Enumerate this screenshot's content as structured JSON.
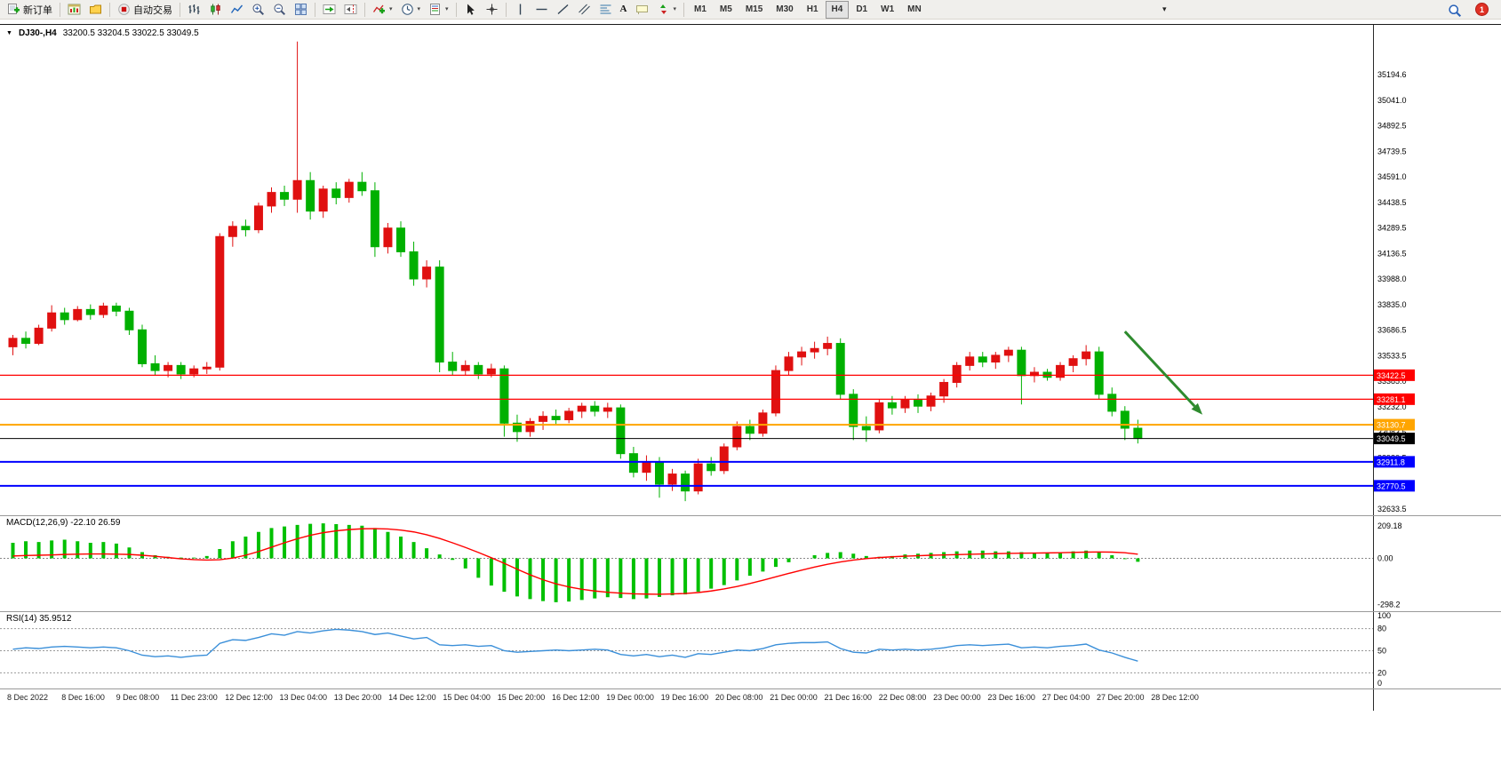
{
  "toolbar": {
    "new_order_label": "新订单",
    "auto_trading_label": "自动交易",
    "timeframes": [
      "M1",
      "M5",
      "M15",
      "M30",
      "H1",
      "H4",
      "D1",
      "W1",
      "MN"
    ],
    "active_timeframe": "H4",
    "notification_count": "1"
  },
  "icons": {
    "collapse_triangle": "▼",
    "caret": "▾",
    "text_tool": "A"
  },
  "colors": {
    "up_candle": "#E01010",
    "down_candle": "#00B000",
    "macd_histogram": "#00C000",
    "macd_signal": "#FF0000",
    "rsi_line": "#3A8FD9",
    "arrow_annotation": "#2E8B2E"
  },
  "chart_data": {
    "type": "candlestick",
    "symbol": "DJ30-,H4",
    "ohlc_display": "33200.5 33204.5 33022.5 33049.5",
    "price_range": {
      "axis_top": 35194.6,
      "axis_bottom": 32633.5
    },
    "price_axis_labels": [
      "35194.6",
      "35041.0",
      "34892.5",
      "34739.5",
      "34591.0",
      "34438.5",
      "34289.5",
      "34136.5",
      "33988.0",
      "33835.0",
      "33686.5",
      "33533.5",
      "33385.0",
      "33232.0",
      "33083.5",
      "32930.5",
      "32777.5",
      "32633.5"
    ],
    "time_axis_labels": [
      "8 Dec 2022",
      "8 Dec 16:00",
      "9 Dec 08:00",
      "11 Dec 23:00",
      "12 Dec 12:00",
      "13 Dec 04:00",
      "13 Dec 20:00",
      "14 Dec 12:00",
      "15 Dec 04:00",
      "15 Dec 20:00",
      "16 Dec 12:00",
      "19 Dec 00:00",
      "19 Dec 16:00",
      "20 Dec 08:00",
      "21 Dec 00:00",
      "21 Dec 16:00",
      "22 Dec 08:00",
      "23 Dec 00:00",
      "23 Dec 16:00",
      "27 Dec 04:00",
      "27 Dec 20:00",
      "28 Dec 12:00"
    ],
    "price_lines": [
      {
        "price": 33422.5,
        "label": "33422.5",
        "color": "#FF0000",
        "width": 1.2
      },
      {
        "price": 33281.1,
        "label": "33281.1",
        "color": "#FF0000",
        "width": 1.2
      },
      {
        "price": 33130.7,
        "label": "33130.7",
        "color": "#FFA500",
        "width": 2
      },
      {
        "price": 33049.5,
        "label": "33049.5",
        "color": "#000000",
        "width": 1
      },
      {
        "price": 32911.8,
        "label": "32911.8",
        "color": "#0000FF",
        "width": 2
      },
      {
        "price": 32770.5,
        "label": "32770.5",
        "color": "#0000FF",
        "width": 2
      }
    ],
    "arrow": {
      "from": {
        "bar": 86,
        "price": 33680
      },
      "to": {
        "bar": 92,
        "price": 33190
      }
    },
    "candles": [
      [
        33590,
        33660,
        33540,
        33640
      ],
      [
        33640,
        33680,
        33580,
        33610
      ],
      [
        33610,
        33720,
        33600,
        33700
      ],
      [
        33700,
        33835,
        33680,
        33790
      ],
      [
        33790,
        33820,
        33720,
        33750
      ],
      [
        33750,
        33830,
        33740,
        33810
      ],
      [
        33810,
        33840,
        33750,
        33780
      ],
      [
        33780,
        33850,
        33760,
        33830
      ],
      [
        33830,
        33850,
        33770,
        33800
      ],
      [
        33800,
        33820,
        33660,
        33690
      ],
      [
        33690,
        33720,
        33470,
        33490
      ],
      [
        33490,
        33540,
        33420,
        33450
      ],
      [
        33450,
        33500,
        33410,
        33480
      ],
      [
        33480,
        33500,
        33400,
        33430
      ],
      [
        33430,
        33480,
        33410,
        33460
      ],
      [
        33460,
        33500,
        33430,
        33470
      ],
      [
        33470,
        34260,
        33450,
        34240
      ],
      [
        34240,
        34330,
        34180,
        34300
      ],
      [
        34300,
        34340,
        34240,
        34280
      ],
      [
        34280,
        34440,
        34260,
        34420
      ],
      [
        34420,
        34530,
        34380,
        34500
      ],
      [
        34500,
        34540,
        34420,
        34460
      ],
      [
        34460,
        35390,
        34380,
        34570
      ],
      [
        34570,
        34620,
        34340,
        34390
      ],
      [
        34390,
        34540,
        34350,
        34520
      ],
      [
        34520,
        34560,
        34430,
        34470
      ],
      [
        34470,
        34580,
        34440,
        34560
      ],
      [
        34560,
        34620,
        34480,
        34510
      ],
      [
        34510,
        34560,
        34120,
        34180
      ],
      [
        34180,
        34320,
        34140,
        34290
      ],
      [
        34290,
        34330,
        34120,
        34150
      ],
      [
        34150,
        34210,
        33950,
        33990
      ],
      [
        33990,
        34100,
        33940,
        34060
      ],
      [
        34060,
        34100,
        33440,
        33500
      ],
      [
        33500,
        33560,
        33420,
        33450
      ],
      [
        33450,
        33510,
        33420,
        33480
      ],
      [
        33480,
        33500,
        33400,
        33430
      ],
      [
        33430,
        33490,
        33410,
        33460
      ],
      [
        33460,
        33480,
        33060,
        33140
      ],
      [
        33140,
        33190,
        33030,
        33090
      ],
      [
        33090,
        33170,
        33060,
        33150
      ],
      [
        33150,
        33210,
        33100,
        33180
      ],
      [
        33180,
        33220,
        33130,
        33160
      ],
      [
        33160,
        33230,
        33140,
        33210
      ],
      [
        33210,
        33260,
        33170,
        33240
      ],
      [
        33240,
        33270,
        33180,
        33210
      ],
      [
        33210,
        33260,
        33170,
        33230
      ],
      [
        33230,
        33250,
        32930,
        32960
      ],
      [
        32960,
        33000,
        32820,
        32850
      ],
      [
        32850,
        32950,
        32800,
        32910
      ],
      [
        32910,
        32940,
        32700,
        32780
      ],
      [
        32780,
        32870,
        32740,
        32840
      ],
      [
        32840,
        32860,
        32680,
        32740
      ],
      [
        32740,
        32930,
        32720,
        32900
      ],
      [
        32900,
        32940,
        32830,
        32860
      ],
      [
        32860,
        33020,
        32840,
        33000
      ],
      [
        33000,
        33150,
        32980,
        33120
      ],
      [
        33120,
        33160,
        33040,
        33080
      ],
      [
        33080,
        33220,
        33060,
        33200
      ],
      [
        33200,
        33480,
        33180,
        33450
      ],
      [
        33450,
        33560,
        33420,
        33530
      ],
      [
        33530,
        33590,
        33480,
        33560
      ],
      [
        33560,
        33620,
        33520,
        33580
      ],
      [
        33580,
        33650,
        33540,
        33610
      ],
      [
        33610,
        33640,
        33280,
        33310
      ],
      [
        33310,
        33340,
        33040,
        33120
      ],
      [
        33120,
        33180,
        33030,
        33100
      ],
      [
        33100,
        33280,
        33080,
        33260
      ],
      [
        33260,
        33300,
        33190,
        33230
      ],
      [
        33230,
        33300,
        33200,
        33280
      ],
      [
        33280,
        33310,
        33200,
        33240
      ],
      [
        33240,
        33320,
        33210,
        33300
      ],
      [
        33300,
        33400,
        33260,
        33380
      ],
      [
        33380,
        33500,
        33350,
        33480
      ],
      [
        33480,
        33560,
        33450,
        33530
      ],
      [
        33530,
        33560,
        33470,
        33500
      ],
      [
        33500,
        33560,
        33460,
        33540
      ],
      [
        33540,
        33590,
        33500,
        33570
      ],
      [
        33570,
        33590,
        33250,
        33420
      ],
      [
        33420,
        33470,
        33380,
        33440
      ],
      [
        33440,
        33460,
        33390,
        33410
      ],
      [
        33410,
        33500,
        33390,
        33480
      ],
      [
        33480,
        33540,
        33440,
        33520
      ],
      [
        33520,
        33600,
        33480,
        33560
      ],
      [
        33560,
        33590,
        33280,
        33310
      ],
      [
        33310,
        33350,
        33180,
        33210
      ],
      [
        33210,
        33240,
        33040,
        33110
      ],
      [
        33110,
        33160,
        33020,
        33049.5
      ]
    ],
    "macd": {
      "label": "MACD(12,26,9)",
      "main_value": "-22.10",
      "signal_value": "26.59",
      "axis_labels": [
        "209.18",
        "0.00",
        "-298.2"
      ],
      "axis_values": [
        209.18,
        0,
        -298.2
      ],
      "histogram": [
        100,
        110,
        105,
        115,
        120,
        110,
        100,
        105,
        95,
        70,
        40,
        20,
        10,
        5,
        5,
        15,
        60,
        110,
        140,
        170,
        195,
        205,
        215,
        222,
        225,
        220,
        215,
        210,
        195,
        170,
        140,
        105,
        65,
        25,
        -10,
        -65,
        -125,
        -175,
        -215,
        -245,
        -262,
        -275,
        -282,
        -278,
        -268,
        -258,
        -250,
        -255,
        -262,
        -258,
        -248,
        -238,
        -232,
        -215,
        -195,
        -172,
        -142,
        -112,
        -85,
        -55,
        -25,
        0,
        20,
        35,
        40,
        30,
        15,
        10,
        15,
        25,
        30,
        35,
        40,
        45,
        50,
        50,
        45,
        45,
        40,
        35,
        35,
        40,
        45,
        50,
        40,
        20,
        -5,
        -22.1
      ],
      "signal": [
        15,
        18,
        20,
        22,
        25,
        27,
        28,
        28,
        27,
        25,
        20,
        13,
        5,
        -3,
        -8,
        -11,
        -9,
        2,
        20,
        44,
        72,
        100,
        126,
        148,
        165,
        177,
        185,
        190,
        191,
        189,
        182,
        170,
        152,
        128,
        100,
        70,
        38,
        4,
        -32,
        -70,
        -106,
        -138,
        -164,
        -184,
        -199,
        -210,
        -218,
        -224,
        -228,
        -230,
        -231,
        -229,
        -226,
        -220,
        -210,
        -197,
        -181,
        -162,
        -141,
        -119,
        -97,
        -76,
        -56,
        -38,
        -23,
        -11,
        -2,
        5,
        10,
        14,
        17,
        20,
        22,
        24,
        26,
        28,
        30,
        32,
        33,
        34,
        35,
        36,
        38,
        40,
        41,
        40,
        36,
        26.59
      ]
    },
    "rsi": {
      "label": "RSI(14)",
      "value": "35.9512",
      "axis_labels": [
        "100",
        "80",
        "50",
        "20",
        "0"
      ],
      "axis_values": [
        100,
        80,
        50,
        20,
        0
      ],
      "levels": [
        80,
        50,
        20
      ],
      "values": [
        52,
        54,
        53,
        55,
        56,
        55,
        54,
        55,
        54,
        50,
        44,
        42,
        43,
        41,
        43,
        44,
        60,
        65,
        64,
        68,
        73,
        71,
        76,
        74,
        77,
        79,
        78,
        76,
        72,
        74,
        70,
        66,
        68,
        58,
        57,
        58,
        56,
        57,
        50,
        48,
        49,
        50,
        51,
        50,
        51,
        52,
        51,
        45,
        43,
        45,
        42,
        44,
        41,
        46,
        45,
        48,
        51,
        50,
        53,
        58,
        60,
        61,
        61,
        62,
        53,
        48,
        47,
        52,
        51,
        52,
        51,
        52,
        54,
        57,
        58,
        57,
        58,
        59,
        54,
        55,
        54,
        56,
        57,
        59,
        51,
        47,
        41,
        35.95
      ]
    }
  }
}
